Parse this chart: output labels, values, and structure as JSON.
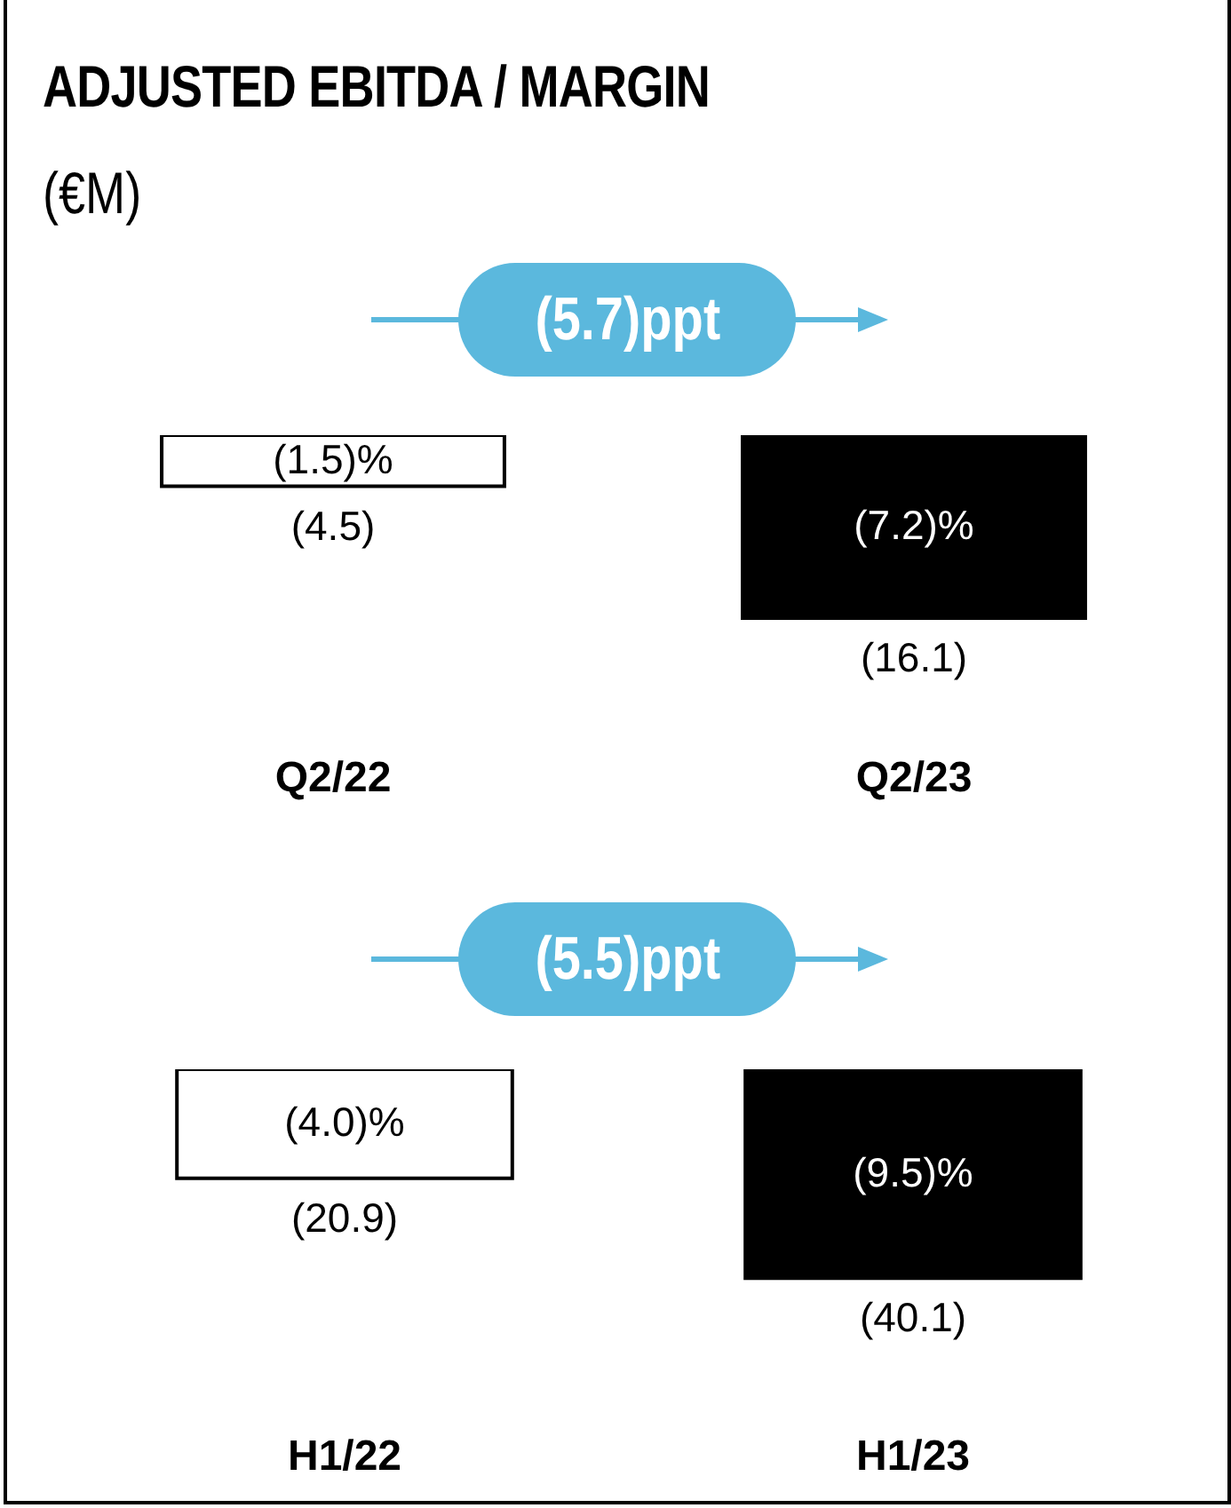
{
  "chart_data": [
    {
      "type": "bar",
      "title": "ADJUSTED EBITDA / MARGIN",
      "subtitle": "(€M)",
      "categories": [
        "Q2/22",
        "Q2/23"
      ],
      "values": [
        -4.5,
        -16.1
      ],
      "colors": [
        "#ffffff",
        "#000000"
      ],
      "value_labels": [
        "(4.5)",
        "(16.1)"
      ],
      "annotations": [
        "(5.7)ppt",
        "(1.5)%",
        "(7.2)%"
      ]
    },
    {
      "type": "bar",
      "categories": [
        "H1/22",
        "H1/23"
      ],
      "values": [
        -20.9,
        -40.1
      ],
      "colors": [
        "#ffffff",
        "#000000"
      ],
      "value_labels": [
        "(20.9)",
        "(40.1)"
      ],
      "annotations": [
        "(5.5)ppt",
        "(4.0)%",
        "(9.5)%"
      ]
    }
  ]
}
